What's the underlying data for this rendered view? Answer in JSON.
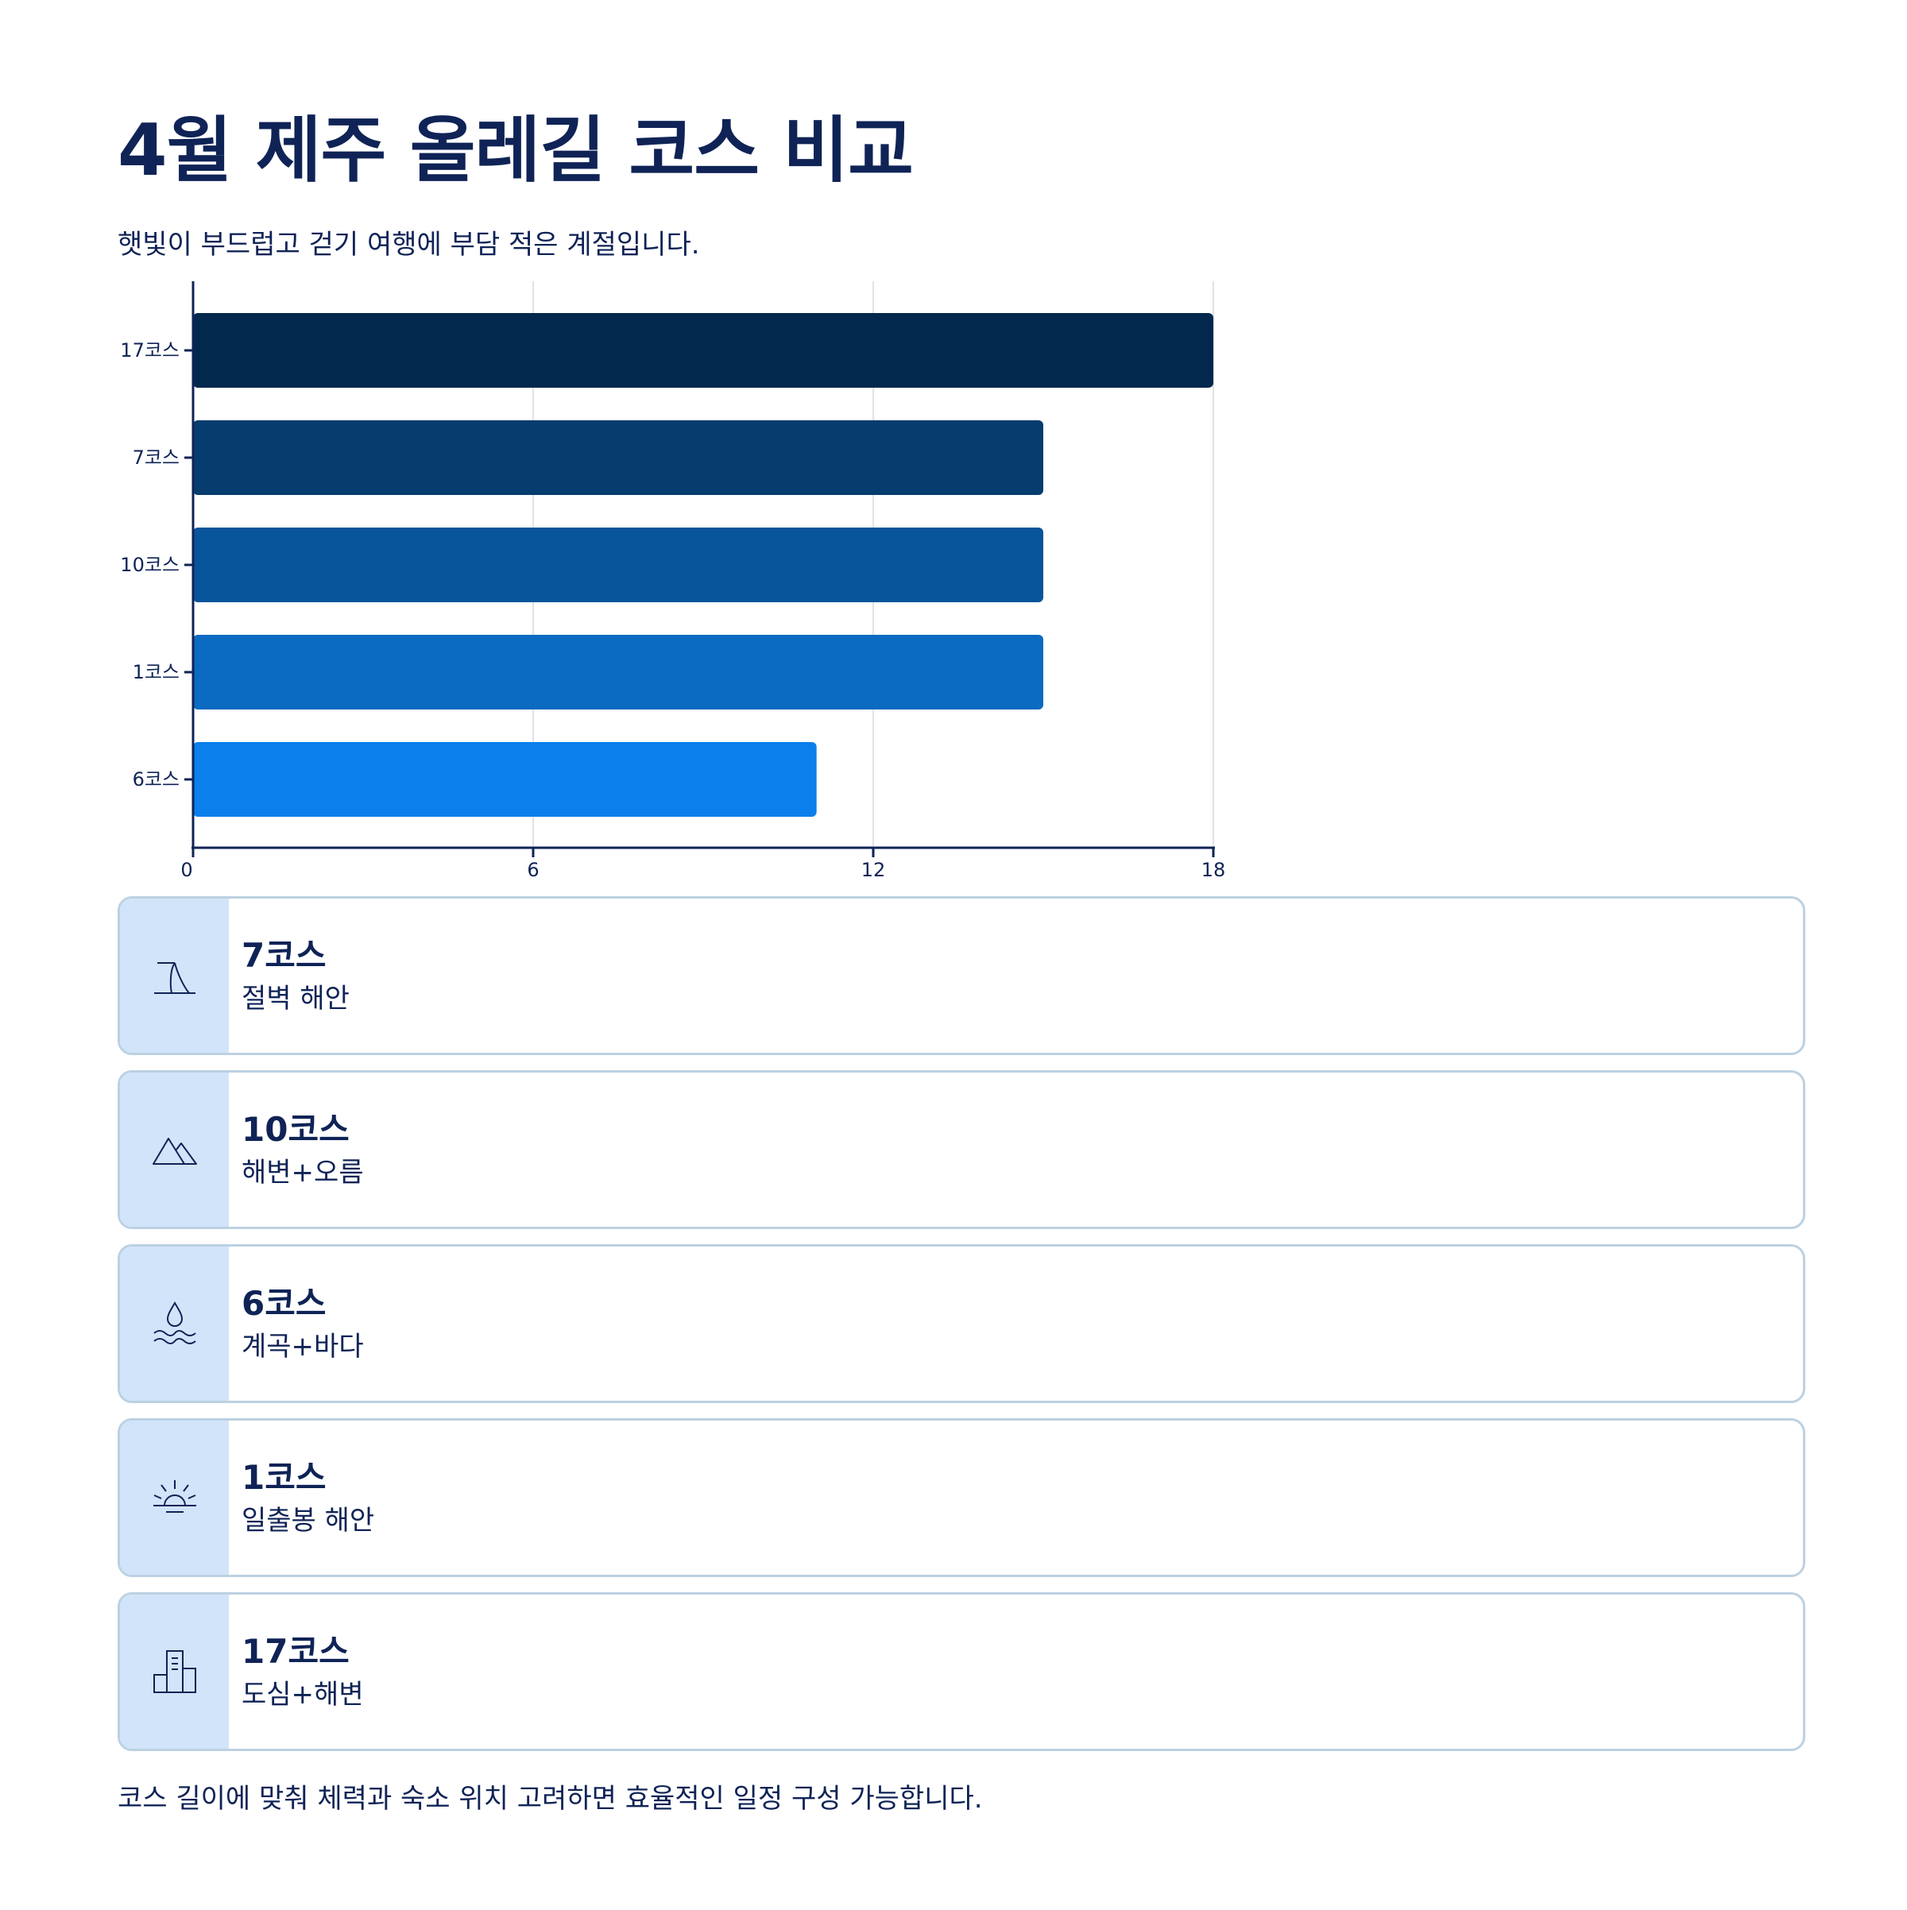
{
  "header": {
    "title": "4월 제주 올레길 코스 비교",
    "subtitle": "햇빛이 부드럽고 걷기 여행에 부담 적은 계절입니다."
  },
  "chart_data": {
    "type": "bar",
    "orientation": "horizontal",
    "categories": [
      "17코스",
      "7코스",
      "10코스",
      "1코스",
      "6코스"
    ],
    "values": [
      18,
      15,
      15,
      15,
      11
    ],
    "colors": [
      "#03284d",
      "#073c6f",
      "#08549a",
      "#0b6ac1",
      "#0b7feb"
    ],
    "xlim": [
      0,
      18
    ],
    "xticks": [
      "0",
      "6",
      "12",
      "18"
    ],
    "grid": true
  },
  "cards": [
    {
      "name": "7코스",
      "desc": "절벽 해안",
      "icon": "cliff-icon"
    },
    {
      "name": "10코스",
      "desc": "해변+오름",
      "icon": "mountain-icon"
    },
    {
      "name": "6코스",
      "desc": "계곡+바다",
      "icon": "water-drop-icon"
    },
    {
      "name": "1코스",
      "desc": "일출봉 해안",
      "icon": "sunrise-icon"
    },
    {
      "name": "17코스",
      "desc": "도심+해변",
      "icon": "city-buildings-icon"
    }
  ],
  "footer": "코스 길이에 맞춰 체력과 숙소 위치 고려하면 효율적인 일정 구성 가능합니다.",
  "theme": {
    "text": "#0f2356",
    "card_border": "#bcd1e2",
    "card_band": "#d2e4f9"
  }
}
